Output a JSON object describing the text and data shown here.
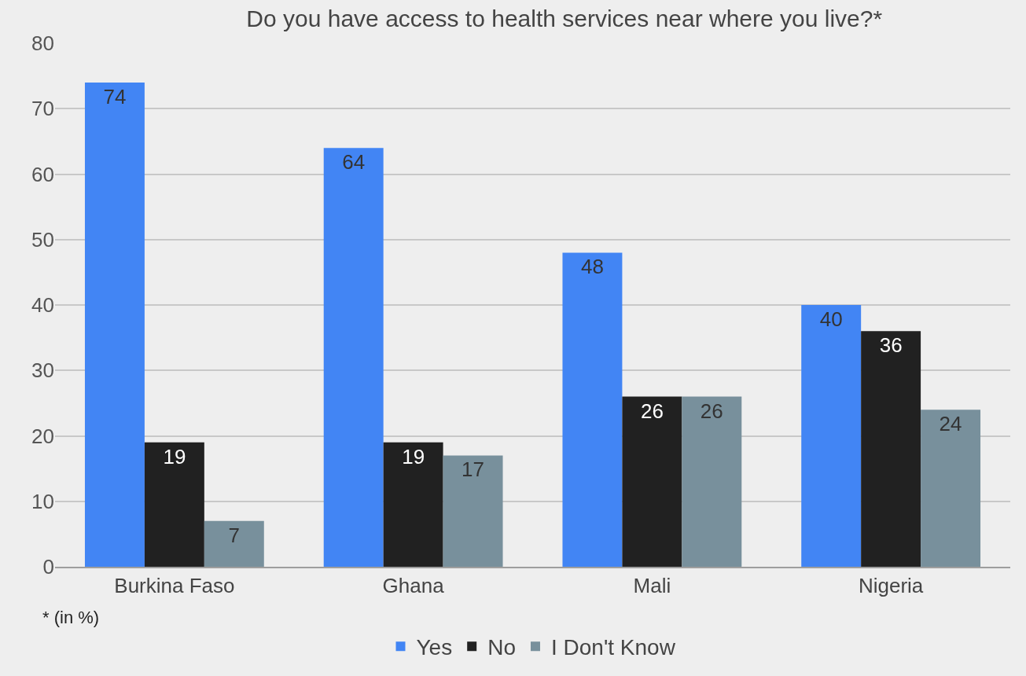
{
  "chart_data": {
    "type": "bar",
    "title": "Do you have access to health services near where you live?*",
    "categories": [
      "Burkina Faso",
      "Ghana",
      "Mali",
      "Nigeria"
    ],
    "series": [
      {
        "name": "Yes",
        "color": "#4285f4",
        "values": [
          74,
          64,
          48,
          40
        ]
      },
      {
        "name": "No",
        "color": "#212121",
        "values": [
          19,
          19,
          26,
          36
        ]
      },
      {
        "name": "I Don't Know",
        "color": "#78909c",
        "values": [
          7,
          17,
          26,
          24
        ]
      }
    ],
    "ylim": [
      0,
      80
    ],
    "yticks": [
      0,
      10,
      20,
      30,
      40,
      50,
      60,
      70,
      80
    ],
    "grid": "y",
    "legend": "bottom",
    "data_labels": true,
    "annotations": [
      "* (in %)"
    ]
  }
}
